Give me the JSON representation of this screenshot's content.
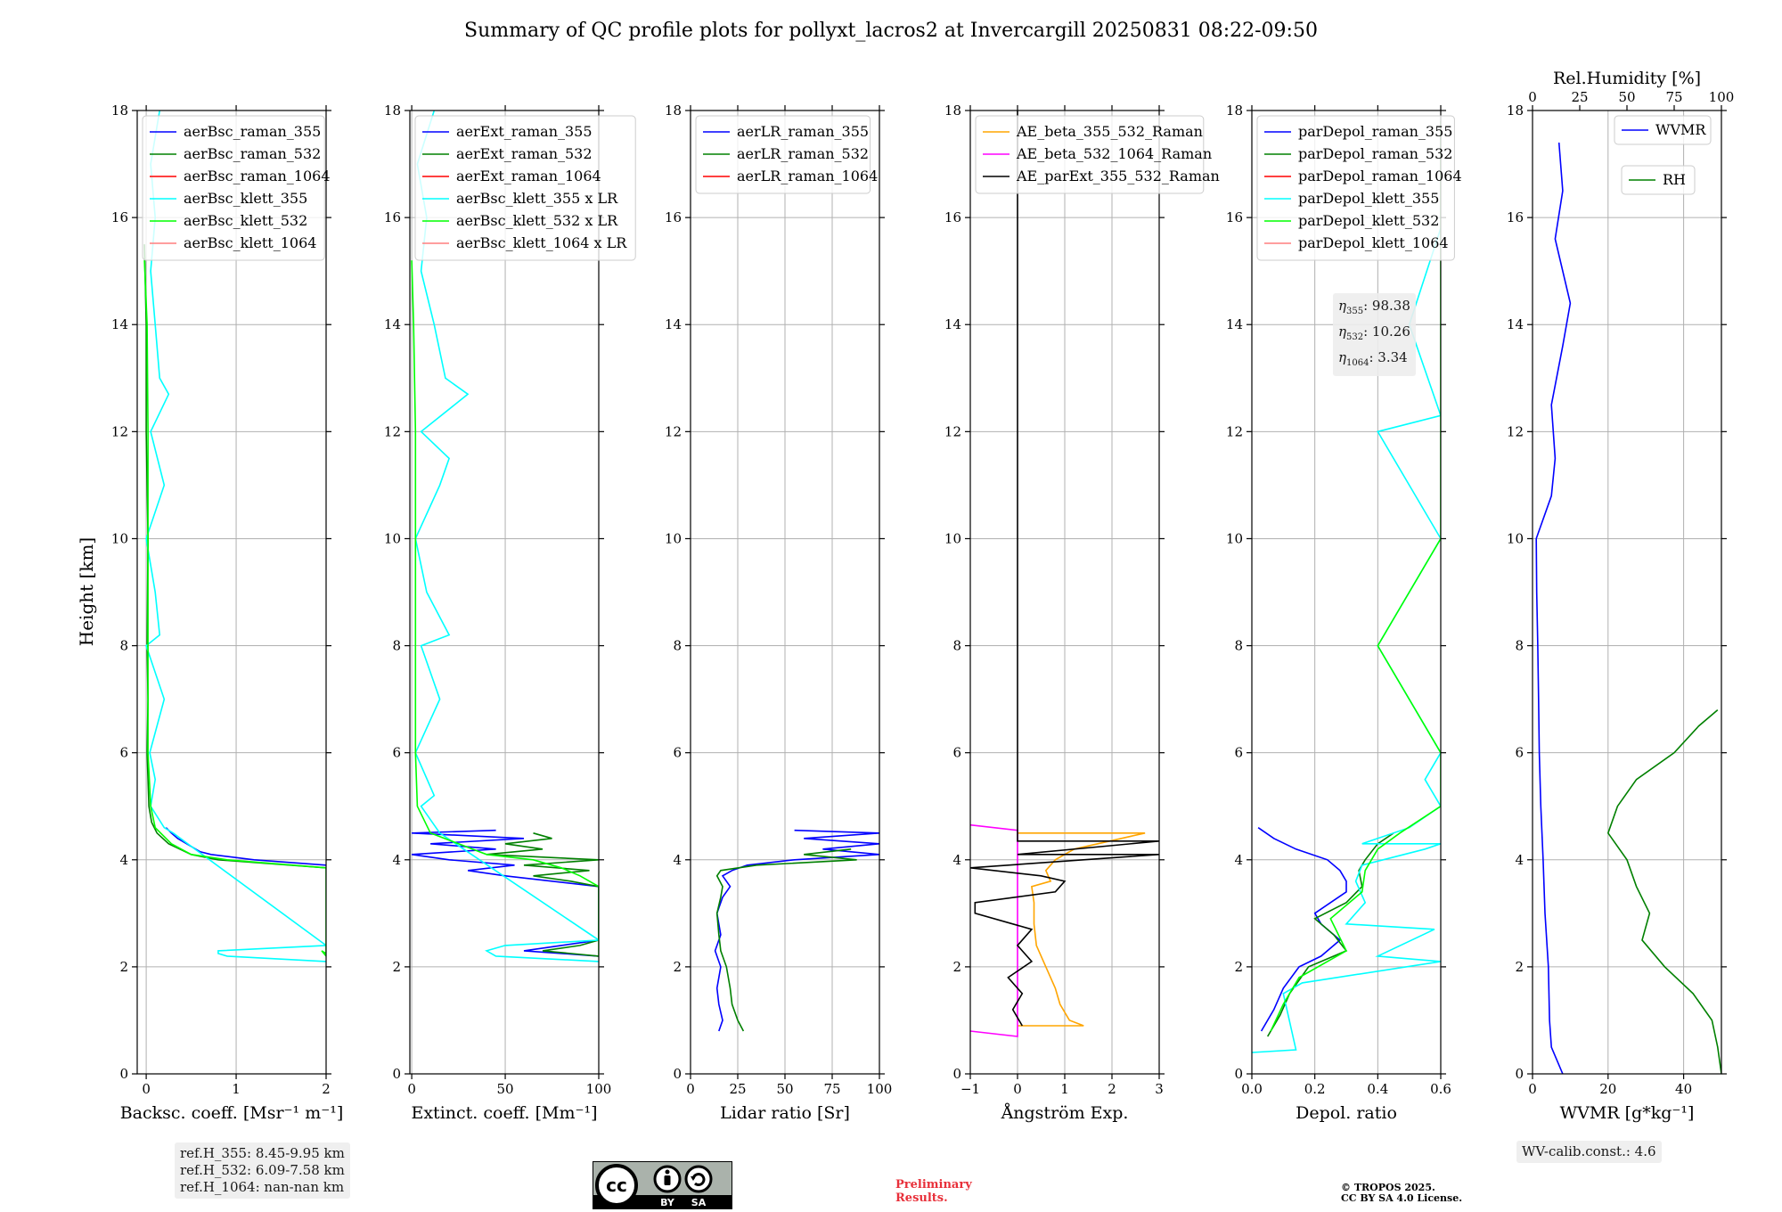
{
  "title": "Summary of QC profile plots for pollyxt_lacros2 at Invercargill 20250831 08:22-09:50",
  "ylabel": "Height [km]",
  "ref_heights": [
    "ref.H_355: 8.45-9.95 km",
    "ref.H_532: 6.09-7.58 km",
    "ref.H_1064: nan-nan km"
  ],
  "eta_lines": [
    {
      "sub": "355",
      "value": "98.38"
    },
    {
      "sub": "532",
      "value": "10.26"
    },
    {
      "sub": "1064",
      "value": "3.34"
    }
  ],
  "wv_calib": "WV-calib.const.: 4.6",
  "preliminary": [
    "Preliminary",
    "Results."
  ],
  "copyright": [
    "© TROPOS 2025.",
    "CC BY SA 4.0 License."
  ],
  "license_badge": {
    "labels": [
      "BY",
      "SA"
    ],
    "icon": "cc-by-sa-icon"
  },
  "colors": {
    "blue": "#0000ff",
    "green": "#008000",
    "red": "#ff0000",
    "cyan": "#00ffff",
    "lime": "#00ff00",
    "salmon": "#ff7f7f",
    "orange": "#ffa500",
    "magenta": "#ff00ff",
    "black": "#000000"
  },
  "chart_data": [
    {
      "type": "line",
      "xlabel": "Backsc. coeff. [Msr⁻¹ m⁻¹]",
      "ylabel": "Height [km]",
      "xlim": [
        -0.1,
        2
      ],
      "ylim": [
        0,
        18
      ],
      "xticks": [
        0,
        1,
        2
      ],
      "yticks": [
        0,
        2,
        4,
        6,
        8,
        10,
        12,
        14,
        16,
        18
      ],
      "grid": true,
      "legend_position": "top-left",
      "series": [
        {
          "name": "aerBsc_raman_355",
          "color": "#0000ff",
          "y": [
            3.9,
            4.0,
            4.1,
            4.15,
            4.3,
            4.4,
            4.5,
            4.55,
            4.6
          ],
          "x": [
            2.0,
            1.2,
            0.72,
            0.6,
            0.45,
            0.35,
            0.28,
            0.25,
            0.22
          ]
        },
        {
          "name": "aerBsc_raman_532",
          "color": "#008000",
          "y": [
            3.85,
            4.0,
            4.1,
            4.3,
            4.5,
            4.7,
            5,
            6,
            7,
            8,
            10,
            12,
            14,
            15.5
          ],
          "x": [
            2.0,
            0.8,
            0.5,
            0.25,
            0.12,
            0.06,
            0.03,
            0.01,
            0.02,
            0.01,
            0.02,
            0.0,
            0.0,
            -0.02
          ]
        },
        {
          "name": "aerBsc_raman_1064",
          "color": "#ff0000",
          "x": [],
          "y": []
        },
        {
          "name": "aerBsc_klett_355",
          "color": "#00ffff",
          "y": [
            2.1,
            2.2,
            2.25,
            2.3,
            2.4,
            4.5,
            4.6,
            5,
            5.5,
            6,
            7,
            8,
            8.2,
            9,
            10,
            11,
            12,
            12.7,
            13,
            14,
            15,
            16,
            17,
            18
          ],
          "x": [
            2.0,
            0.9,
            0.8,
            0.8,
            2.0,
            0.3,
            0.2,
            0.05,
            0.1,
            0.04,
            0.2,
            0.0,
            0.15,
            0.1,
            0.0,
            0.2,
            0.05,
            0.25,
            0.15,
            0.1,
            0.05,
            0.1,
            0.05,
            0.15
          ]
        },
        {
          "name": "aerBsc_klett_532",
          "color": "#00ff00",
          "y": [
            2.2,
            2.3,
            2.25,
            3.85,
            4.0,
            4.1,
            4.3,
            4.6,
            5,
            6,
            8,
            10,
            12,
            14,
            15.2
          ],
          "x": [
            2.0,
            1.95,
            2.0,
            2.0,
            0.9,
            0.5,
            0.28,
            0.1,
            0.05,
            0.02,
            0.02,
            0.02,
            0.02,
            0.01,
            -0.02
          ]
        },
        {
          "name": "aerBsc_klett_1064",
          "color": "#ff7f7f",
          "x": [],
          "y": []
        }
      ]
    },
    {
      "type": "line",
      "xlabel": "Extinct. coeff. [Mm⁻¹]",
      "xlim": [
        -1,
        100
      ],
      "ylim": [
        0,
        18
      ],
      "xticks": [
        0,
        50,
        100
      ],
      "yticks": [
        0,
        2,
        4,
        6,
        8,
        10,
        12,
        14,
        16,
        18
      ],
      "grid": true,
      "legend_position": "top-left",
      "series": [
        {
          "name": "aerExt_raman_355",
          "color": "#0000ff",
          "y": [
            2.2,
            2.3,
            2.4,
            2.5,
            3.5,
            3.6,
            3.7,
            3.8,
            3.9,
            4.0,
            4.1,
            4.2,
            4.3,
            4.4,
            4.5,
            4.55
          ],
          "x": [
            100,
            60,
            80,
            100,
            100,
            75,
            50,
            30,
            55,
            20,
            0,
            45,
            10,
            60,
            0,
            45
          ]
        },
        {
          "name": "aerExt_raman_532",
          "color": "#008000",
          "y": [
            2.2,
            2.3,
            2.4,
            2.5,
            3.5,
            3.6,
            3.7,
            3.8,
            3.9,
            4.0,
            4.1,
            4.2,
            4.3,
            4.4,
            4.5
          ],
          "x": [
            100,
            70,
            90,
            100,
            100,
            85,
            65,
            95,
            60,
            100,
            40,
            70,
            50,
            75,
            65
          ]
        },
        {
          "name": "aerExt_raman_1064",
          "color": "#ff0000",
          "x": [],
          "y": []
        },
        {
          "name": "aerBsc_klett_355 x LR",
          "color": "#00ffff",
          "y": [
            2.1,
            2.2,
            2.3,
            2.4,
            2.5,
            4.5,
            5,
            5.2,
            6,
            7,
            8,
            8.2,
            9,
            10,
            11,
            11.5,
            12,
            12.7,
            13,
            14,
            15,
            16,
            17,
            18
          ],
          "x": [
            100,
            45,
            40,
            50,
            100,
            15,
            5,
            12,
            2,
            15,
            5,
            20,
            8,
            2,
            15,
            20,
            5,
            30,
            18,
            12,
            5,
            8,
            3,
            12
          ]
        },
        {
          "name": "aerBsc_klett_532 x LR",
          "color": "#00ff00",
          "y": [
            2.2,
            2.3,
            3.5,
            3.7,
            3.85,
            4.0,
            4.1,
            4.3,
            4.5,
            5,
            6,
            8,
            10,
            12,
            14,
            15.2
          ],
          "x": [
            100,
            100,
            100,
            90,
            80,
            65,
            40,
            25,
            10,
            3,
            2,
            2,
            2,
            2,
            1,
            0
          ]
        },
        {
          "name": "aerBsc_klett_1064 x LR",
          "color": "#ff7f7f",
          "x": [],
          "y": []
        }
      ]
    },
    {
      "type": "line",
      "xlabel": "Lidar ratio [Sr]",
      "xlim": [
        0,
        100
      ],
      "ylim": [
        0,
        18
      ],
      "xticks": [
        0,
        25,
        50,
        75,
        100
      ],
      "yticks": [
        0,
        2,
        4,
        6,
        8,
        10,
        12,
        14,
        16,
        18
      ],
      "grid": true,
      "legend_position": "top-left",
      "series": [
        {
          "name": "aerLR_raman_355",
          "color": "#0000ff",
          "y": [
            0.8,
            1.0,
            1.3,
            1.6,
            2.0,
            2.3,
            2.6,
            3.0,
            3.3,
            3.5,
            3.7,
            3.8,
            3.9,
            4.0,
            4.1,
            4.2,
            4.3,
            4.4,
            4.5,
            4.55
          ],
          "x": [
            15,
            17,
            15,
            14,
            16,
            13,
            16,
            14,
            17,
            21,
            17,
            22,
            30,
            55,
            100,
            70,
            100,
            60,
            100,
            55
          ]
        },
        {
          "name": "aerLR_raman_532",
          "color": "#008000",
          "y": [
            0.8,
            1.0,
            1.3,
            1.6,
            2.0,
            2.3,
            2.6,
            3.0,
            3.3,
            3.5,
            3.7,
            3.8,
            3.9,
            4.0,
            4.1,
            4.2
          ],
          "x": [
            28,
            25,
            22,
            21,
            19,
            16,
            15,
            14,
            16,
            17,
            14,
            16,
            35,
            88,
            60,
            85
          ]
        },
        {
          "name": "aerLR_raman_1064",
          "color": "#ff0000",
          "x": [],
          "y": []
        }
      ]
    },
    {
      "type": "line",
      "xlabel": "Ångström Exp.",
      "xlim": [
        -1,
        3
      ],
      "ylim": [
        0,
        18
      ],
      "xticks": [
        -1,
        0,
        1,
        2,
        3
      ],
      "yticks": [
        0,
        2,
        4,
        6,
        8,
        10,
        12,
        14,
        16,
        18
      ],
      "grid": true,
      "legend_position": "top-left",
      "series": [
        {
          "name": "AE_beta_355_532_Raman",
          "color": "#ffa500",
          "y": [
            0.9,
            0.9,
            1.0,
            1.3,
            1.6,
            2.0,
            2.4,
            2.8,
            3.2,
            3.5,
            3.6,
            3.8,
            4.0,
            4.2,
            4.5,
            4.5
          ],
          "x": [
            0,
            1.4,
            1.1,
            0.9,
            0.8,
            0.6,
            0.4,
            0.35,
            0.35,
            0.3,
            0.7,
            0.6,
            0.8,
            1.2,
            2.7,
            0
          ]
        },
        {
          "name": "AE_beta_532_1064_Raman",
          "color": "#ff00ff",
          "y": [
            0.8,
            0.7,
            4.55,
            4.65
          ],
          "x": [
            -1,
            0,
            0,
            -1
          ]
        },
        {
          "name": "AE_parExt_355_532_Raman",
          "color": "#000000",
          "y": [
            0.9,
            1.2,
            1.5,
            1.8,
            2.1,
            2.4,
            2.7,
            3.0,
            3.2,
            3.4,
            3.6,
            3.7,
            3.85,
            4.1,
            4.1,
            4.35,
            4.35,
            4.5,
            18
          ],
          "x": [
            0.1,
            -0.1,
            0.1,
            -0.2,
            0.3,
            0.0,
            0.3,
            -0.9,
            -0.9,
            0.8,
            1.0,
            0.5,
            -1.0,
            3.0,
            0,
            3.0,
            0,
            0,
            0
          ]
        }
      ]
    },
    {
      "type": "line",
      "xlabel": "Depol. ratio",
      "xlim": [
        0,
        0.6
      ],
      "ylim": [
        0,
        18
      ],
      "xticks": [
        0.0,
        0.2,
        0.4,
        0.6
      ],
      "yticks": [
        0,
        2,
        4,
        6,
        8,
        10,
        12,
        14,
        16,
        18
      ],
      "grid": true,
      "legend_position": "top-left",
      "series": [
        {
          "name": "parDepol_raman_355",
          "color": "#0000ff",
          "y": [
            0.8,
            1.2,
            1.6,
            2.0,
            2.2,
            2.5,
            2.8,
            3.0,
            3.2,
            3.4,
            3.6,
            3.8,
            4.0,
            4.2,
            4.4,
            4.6
          ],
          "x": [
            0.03,
            0.07,
            0.1,
            0.15,
            0.22,
            0.28,
            0.22,
            0.2,
            0.25,
            0.3,
            0.3,
            0.28,
            0.24,
            0.14,
            0.07,
            0.02
          ]
        },
        {
          "name": "parDepol_raman_532",
          "color": "#008000",
          "y": [
            0.7,
            1.1,
            1.5,
            2.0,
            2.3,
            2.6,
            2.9,
            3.2,
            3.5,
            3.8,
            4.0,
            4.3,
            4.5
          ],
          "x": [
            0.05,
            0.09,
            0.12,
            0.18,
            0.3,
            0.26,
            0.2,
            0.3,
            0.35,
            0.34,
            0.36,
            0.4,
            0.45
          ]
        },
        {
          "name": "parDepol_raman_1064",
          "color": "#ff0000",
          "x": [],
          "y": []
        },
        {
          "name": "parDepol_klett_355",
          "color": "#00ffff",
          "y": [
            0.4,
            0.45,
            1.5,
            1.7,
            2.1,
            2.2,
            2.7,
            2.8,
            3.2,
            3.6,
            3.9,
            4.2,
            4.3,
            4.3,
            4.6,
            5.0,
            5.5,
            6,
            8,
            10,
            12,
            12.3,
            14,
            15.8
          ],
          "x": [
            0.0,
            0.14,
            0.1,
            0.16,
            0.6,
            0.4,
            0.58,
            0.3,
            0.36,
            0.33,
            0.35,
            0.55,
            0.6,
            0.35,
            0.5,
            0.6,
            0.55,
            0.6,
            0.4,
            0.6,
            0.4,
            0.6,
            0.5,
            0.6
          ]
        },
        {
          "name": "parDepol_klett_532",
          "color": "#00ff00",
          "y": [
            0.8,
            1.3,
            1.8,
            2.3,
            2.9,
            3.4,
            3.8,
            4.2,
            4.5,
            5,
            6,
            8,
            10,
            11.4,
            12.5,
            13.8,
            17.8
          ],
          "x": [
            0.06,
            0.1,
            0.15,
            0.3,
            0.25,
            0.35,
            0.36,
            0.4,
            0.47,
            0.6,
            0.6,
            0.4,
            0.6,
            0.6,
            0.6,
            0.6,
            0.6
          ]
        },
        {
          "name": "parDepol_klett_1064",
          "color": "#ff7f7f",
          "x": [],
          "y": []
        }
      ]
    },
    {
      "type": "line",
      "xlabel": "WVMR [g*kg⁻¹]",
      "x2label": "Rel.Humidity [%]",
      "xlim": [
        0,
        50
      ],
      "x2lim": [
        0,
        100
      ],
      "ylim": [
        0,
        18
      ],
      "xticks": [
        0,
        20,
        40
      ],
      "x2ticks": [
        0,
        25,
        50,
        75,
        100
      ],
      "yticks": [
        0,
        2,
        4,
        6,
        8,
        10,
        12,
        14,
        16,
        18
      ],
      "grid": true,
      "legend_position": "top-right",
      "series": [
        {
          "name": "WVMR",
          "color": "#0000ff",
          "y": [
            0,
            0.5,
            1,
            2,
            3,
            4,
            5,
            6,
            7,
            8,
            9,
            10,
            10.8,
            11.5,
            12.5,
            13.6,
            14.4,
            15.6,
            16.5,
            17.4
          ],
          "x": [
            8,
            5,
            4.5,
            4.2,
            3.3,
            2.8,
            2.2,
            1.8,
            1.6,
            1.4,
            1.1,
            1,
            5,
            6,
            5,
            8,
            10,
            6,
            8,
            7
          ]
        },
        {
          "name": "RH",
          "color": "#008000",
          "axis": "x2",
          "y": [
            0,
            0.5,
            1.0,
            1.5,
            2.0,
            2.5,
            3.0,
            3.5,
            4.0,
            4.5,
            5.0,
            5.5,
            6.0,
            6.5,
            6.8
          ],
          "x": [
            100,
            98,
            95,
            85,
            70,
            58,
            62,
            55,
            50,
            40,
            45,
            55,
            75,
            88,
            98
          ]
        }
      ]
    }
  ]
}
